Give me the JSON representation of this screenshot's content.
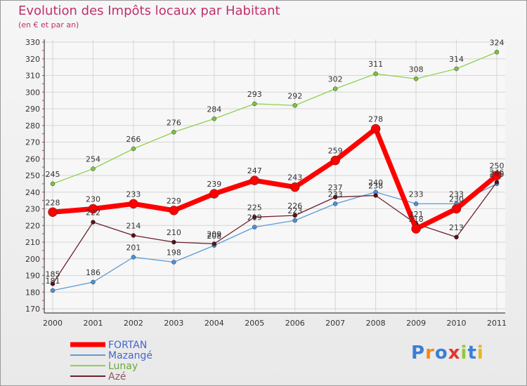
{
  "chart_data": {
    "type": "line",
    "title": "Evolution des Impôts locaux par Habitant",
    "subtitle": "(en € et par an)",
    "xlabel": "",
    "ylabel": "",
    "categories": [
      "2000",
      "2001",
      "2002",
      "2003",
      "2004",
      "2005",
      "2006",
      "2007",
      "2008",
      "2009",
      "2010",
      "2011"
    ],
    "ylim": [
      170,
      330
    ],
    "yticks": [
      "170",
      "180",
      "190",
      "200",
      "210",
      "220",
      "230",
      "240",
      "250",
      "260",
      "270",
      "280",
      "290",
      "300",
      "310",
      "320",
      "330"
    ],
    "grid": true,
    "legend_position": "bottom-left",
    "series": [
      {
        "name": "FORTAN",
        "color": "#ff0000",
        "values": [
          228,
          230,
          233,
          229,
          239,
          247,
          243,
          259,
          278,
          218,
          230,
          250
        ]
      },
      {
        "name": "Mazangé",
        "color": "#5b9bd5",
        "values": [
          181,
          186,
          201,
          198,
          208,
          219,
          223,
          233,
          240,
          233,
          233,
          245
        ]
      },
      {
        "name": "Lunay",
        "color": "#8fd14f",
        "values": [
          245,
          254,
          266,
          276,
          284,
          293,
          292,
          302,
          311,
          308,
          314,
          324
        ]
      },
      {
        "name": "Azé",
        "color": "#6b1f2a",
        "values": [
          185,
          222,
          214,
          210,
          209,
          225,
          226,
          237,
          238,
          221,
          213,
          246
        ]
      }
    ]
  },
  "logo": {
    "text": "Proxiti"
  }
}
